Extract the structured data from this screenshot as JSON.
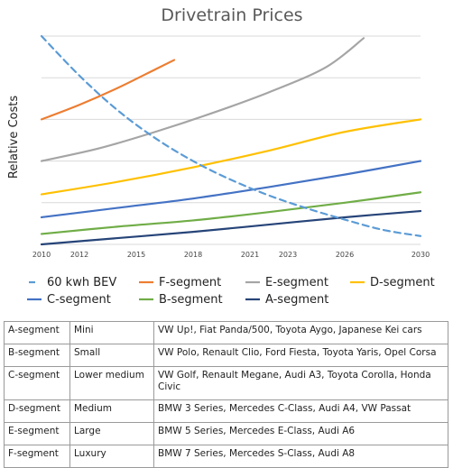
{
  "chart_data": {
    "type": "line",
    "title": "Drivetrain Prices",
    "ylabel": "Relative Costs",
    "xlabel": "",
    "x_ticks": [
      2010,
      2012,
      2015,
      2018,
      2021,
      2023,
      2026,
      2030
    ],
    "xlim": [
      2010,
      2030
    ],
    "ylim": [
      0,
      100
    ],
    "y_gridlines": [
      0,
      20,
      40,
      60,
      80,
      100
    ],
    "legend_position": "bottom",
    "series": [
      {
        "name": "60 kwh BEV",
        "color": "#5b9bd5",
        "dash": true,
        "x": [
          2010,
          2012,
          2014,
          2016,
          2018,
          2020,
          2022,
          2024,
          2026,
          2028,
          2030
        ],
        "y": [
          100,
          81,
          64.5,
          51,
          40,
          31,
          23.5,
          17.3,
          11.9,
          7,
          4
        ]
      },
      {
        "name": "F-segment",
        "color": "#ed7d31",
        "dash": false,
        "x": [
          2010,
          2012,
          2014,
          2016,
          2017
        ],
        "y": [
          60,
          67,
          75,
          84,
          88.5
        ]
      },
      {
        "name": "E-segment",
        "color": "#a5a5a5",
        "dash": false,
        "x": [
          2010,
          2013,
          2016,
          2019,
          2022,
          2025,
          2027
        ],
        "y": [
          40,
          46,
          54,
          63,
          73,
          85,
          99
        ]
      },
      {
        "name": "D-segment",
        "color": "#ffc000",
        "dash": false,
        "x": [
          2010,
          2014,
          2018,
          2022,
          2026,
          2030
        ],
        "y": [
          24,
          30,
          37,
          45,
          54,
          60
        ]
      },
      {
        "name": "C-segment",
        "color": "#4472c4",
        "dash": false,
        "x": [
          2010,
          2014,
          2018,
          2022,
          2026,
          2030
        ],
        "y": [
          13,
          17.5,
          22,
          27.5,
          33.5,
          40
        ]
      },
      {
        "name": "B-segment",
        "color": "#70ad47",
        "dash": false,
        "x": [
          2010,
          2014,
          2018,
          2022,
          2026,
          2030
        ],
        "y": [
          5,
          8.5,
          11.5,
          15.5,
          20,
          25
        ]
      },
      {
        "name": "A-segment",
        "color": "#264478",
        "dash": false,
        "x": [
          2010,
          2014,
          2018,
          2022,
          2026,
          2030
        ],
        "y": [
          0,
          3,
          6,
          9.5,
          13,
          16
        ]
      }
    ]
  },
  "table": {
    "rows": [
      {
        "segment": "A-segment",
        "size": "Mini",
        "examples": "VW Up!, Fiat Panda/500, Toyota Aygo, Japanese Kei cars"
      },
      {
        "segment": "B-segment",
        "size": "Small",
        "examples": "VW Polo, Renault Clio, Ford Fiesta, Toyota Yaris, Opel Corsa"
      },
      {
        "segment": "C-segment",
        "size": "Lower medium",
        "examples": "VW Golf, Renault Megane, Audi A3, Toyota Corolla, Honda Civic"
      },
      {
        "segment": "D-segment",
        "size": "Medium",
        "examples": "BMW 3 Series, Mercedes C-Class, Audi A4, VW Passat"
      },
      {
        "segment": "E-segment",
        "size": "Large",
        "examples": "BMW 5 Series, Mercedes E-Class, Audi A6"
      },
      {
        "segment": "F-segment",
        "size": "Luxury",
        "examples": "BMW 7 Series, Mercedes S-Class, Audi A8"
      }
    ]
  }
}
